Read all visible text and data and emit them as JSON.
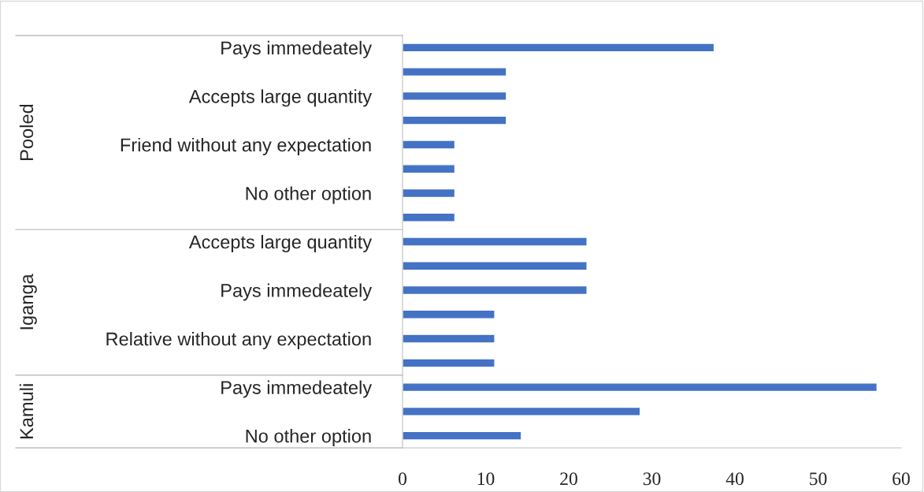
{
  "chart_data": {
    "type": "bar",
    "orientation": "horizontal",
    "categories": [
      "Pays immedeately",
      null,
      "Accepts large quantity",
      null,
      "Friend without any expectation",
      null,
      "No other option",
      null,
      "Accepts large quantity",
      null,
      "Pays immedeately",
      null,
      "Relative without any expectation",
      null,
      "Pays immedeately",
      null,
      "No other option"
    ],
    "values": [
      37.5,
      12.5,
      12.5,
      12.5,
      6.3,
      6.3,
      6.3,
      6.3,
      22.2,
      22.2,
      22.2,
      11.1,
      11.1,
      11.1,
      57.1,
      28.6,
      14.3
    ],
    "color": "#4472c4",
    "xlim": [
      0,
      60
    ],
    "xticks": [
      0,
      10,
      20,
      30,
      40,
      50,
      60
    ],
    "grid": false,
    "annotations": [
      "Pooled",
      "Iganga",
      "Kamuli"
    ]
  }
}
